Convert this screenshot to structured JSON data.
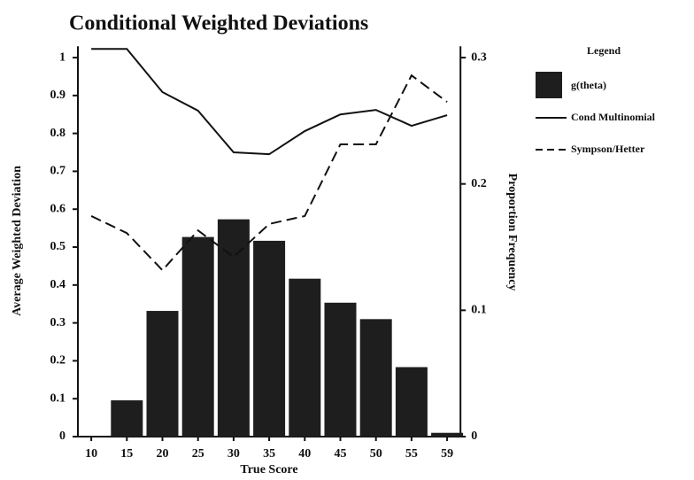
{
  "chart_data": {
    "type": "bar_line",
    "title": "Conditional Weighted Deviations",
    "xlabel": "True Score",
    "ylabel": "Average Weighted Deviation",
    "y2label": "Proportion Frequency",
    "legend_title": "Legend",
    "legend": "right",
    "categories": [
      "10",
      "15",
      "20",
      "25",
      "30",
      "35",
      "40",
      "45",
      "50",
      "55",
      "59"
    ],
    "series": [
      {
        "name": "g(theta)",
        "type": "bar",
        "axis": "y2",
        "color": "#1e1e1e",
        "values": [
          0.0005,
          0.0287,
          0.0995,
          0.158,
          0.172,
          0.155,
          0.125,
          0.106,
          0.093,
          0.055,
          0.003
        ]
      },
      {
        "name": "Cond Multinomial",
        "type": "line",
        "dash": "solid",
        "color": "#111111",
        "values": [
          1.023,
          1.023,
          0.909,
          0.86,
          0.75,
          0.745,
          0.806,
          0.85,
          0.862,
          0.82,
          0.848
        ]
      },
      {
        "name": "Sympson/Hetter",
        "type": "line",
        "dash": "dashed",
        "color": "#111111",
        "values": [
          0.582,
          0.537,
          0.439,
          0.544,
          0.474,
          0.561,
          0.582,
          0.771,
          0.771,
          0.953,
          0.883
        ]
      }
    ],
    "ylim": [
      0,
      1.03
    ],
    "yticks": [
      0,
      0.1,
      0.2,
      0.3,
      0.4,
      0.5,
      0.6,
      0.7,
      0.8,
      0.9,
      1
    ],
    "y2lim": [
      0,
      0.309
    ],
    "y2ticks": [
      0,
      0.1,
      0.2,
      0.3
    ],
    "grid": false
  }
}
